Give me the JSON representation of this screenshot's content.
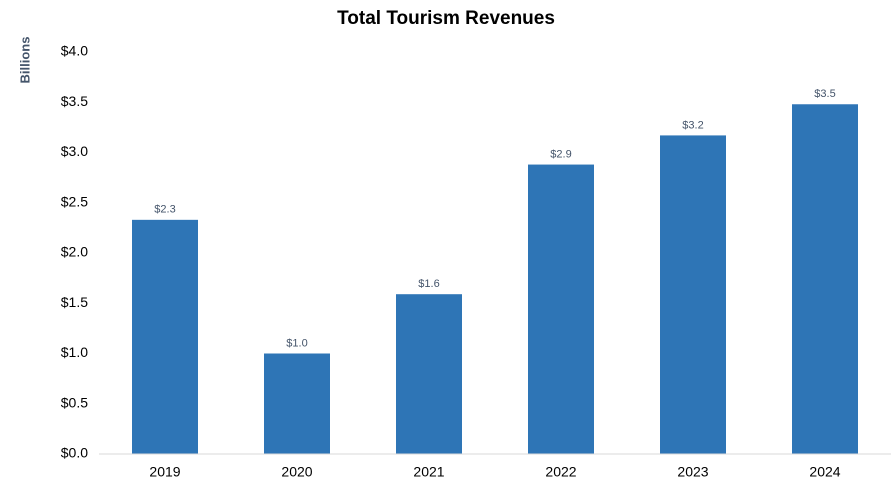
{
  "chart_data": {
    "type": "bar",
    "title": "Total Tourism Revenues",
    "y_label": "Billions",
    "categories": [
      "2019",
      "2020",
      "2021",
      "2022",
      "2023",
      "2024"
    ],
    "values": [
      2.33,
      1.0,
      1.59,
      2.88,
      3.17,
      3.48
    ],
    "value_labels": [
      "$2.3",
      "$1.0",
      "$1.6",
      "$2.9",
      "$3.2",
      "$3.5"
    ],
    "color": "#2e75b6",
    "ylim": [
      0,
      4
    ],
    "yticks": [
      {
        "value": 0,
        "label": "$0.0"
      },
      {
        "value": 0.5,
        "label": "$0.5"
      },
      {
        "value": 1,
        "label": "$1.0"
      },
      {
        "value": 1.5,
        "label": "$1.5"
      },
      {
        "value": 2,
        "label": "$2.0"
      },
      {
        "value": 2.5,
        "label": "$2.5"
      },
      {
        "value": 3,
        "label": "$3.0"
      },
      {
        "value": 3.5,
        "label": "$3.5"
      },
      {
        "value": 4,
        "label": "$4.0"
      }
    ],
    "grid": false
  }
}
